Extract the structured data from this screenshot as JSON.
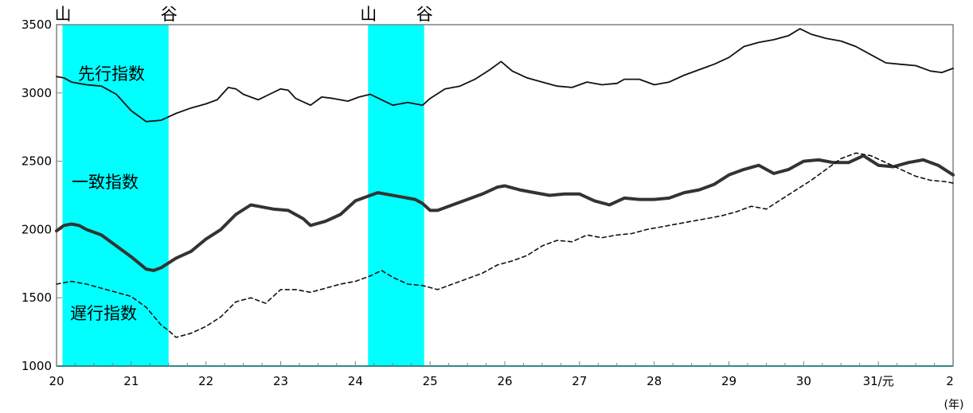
{
  "chart_data": {
    "type": "line",
    "title": "",
    "xlabel": "",
    "ylabel": "",
    "x_unit": "(年)",
    "ylim": [
      1000,
      3500
    ],
    "yticks": [
      "1000",
      "1500",
      "2000",
      "2500",
      "3000",
      "3500"
    ],
    "xticks": [
      "20",
      "21",
      "22",
      "23",
      "24",
      "25",
      "26",
      "27",
      "28",
      "29",
      "30",
      "31/元",
      "2"
    ],
    "xlim": [
      20,
      32
    ],
    "grid": false,
    "colors": {
      "shade": "#00FFFF",
      "leading": "#111111",
      "coincident": "#333333",
      "lagging": "#111111"
    },
    "recessions": [
      {
        "start": 20.08,
        "end": 21.5,
        "peak_label": "山",
        "trough_label": "谷"
      },
      {
        "start": 24.17,
        "end": 24.92,
        "peak_label": "山",
        "trough_label": "谷"
      }
    ],
    "series": [
      {
        "name": "先行指数",
        "style": "thin",
        "x": [
          20.0,
          20.1,
          20.2,
          20.4,
          20.6,
          20.8,
          21.0,
          21.2,
          21.4,
          21.6,
          21.8,
          22.0,
          22.15,
          22.3,
          22.4,
          22.5,
          22.7,
          22.85,
          23.0,
          23.1,
          23.2,
          23.4,
          23.55,
          23.7,
          23.9,
          24.05,
          24.2,
          24.35,
          24.5,
          24.7,
          24.9,
          25.0,
          25.2,
          25.4,
          25.6,
          25.8,
          25.95,
          26.1,
          26.3,
          26.5,
          26.7,
          26.9,
          27.1,
          27.3,
          27.5,
          27.6,
          27.8,
          28.0,
          28.2,
          28.4,
          28.6,
          28.8,
          29.0,
          29.2,
          29.4,
          29.6,
          29.8,
          29.95,
          30.1,
          30.3,
          30.5,
          30.7,
          30.9,
          31.1,
          31.3,
          31.5,
          31.7,
          31.85,
          32.0
        ],
        "values": [
          3120,
          3110,
          3080,
          3060,
          3050,
          2990,
          2870,
          2790,
          2800,
          2850,
          2890,
          2920,
          2950,
          3040,
          3030,
          2990,
          2950,
          2990,
          3030,
          3020,
          2960,
          2910,
          2970,
          2960,
          2940,
          2970,
          2990,
          2950,
          2910,
          2930,
          2910,
          2960,
          3030,
          3050,
          3100,
          3170,
          3230,
          3160,
          3110,
          3080,
          3050,
          3040,
          3080,
          3060,
          3070,
          3100,
          3100,
          3060,
          3080,
          3130,
          3170,
          3210,
          3260,
          3340,
          3370,
          3390,
          3420,
          3470,
          3430,
          3400,
          3380,
          3340,
          3280,
          3220,
          3210,
          3200,
          3160,
          3150,
          3180
        ]
      },
      {
        "name": "一致指数",
        "style": "bold",
        "x": [
          20.0,
          20.1,
          20.2,
          20.3,
          20.4,
          20.6,
          20.8,
          21.0,
          21.2,
          21.3,
          21.4,
          21.6,
          21.8,
          22.0,
          22.2,
          22.4,
          22.6,
          22.7,
          22.9,
          23.1,
          23.3,
          23.4,
          23.6,
          23.8,
          24.0,
          24.2,
          24.3,
          24.4,
          24.6,
          24.8,
          24.9,
          25.0,
          25.1,
          25.3,
          25.5,
          25.7,
          25.9,
          26.0,
          26.2,
          26.4,
          26.6,
          26.8,
          27.0,
          27.2,
          27.4,
          27.6,
          27.8,
          28.0,
          28.2,
          28.4,
          28.6,
          28.8,
          29.0,
          29.2,
          29.4,
          29.6,
          29.8,
          30.0,
          30.2,
          30.4,
          30.6,
          30.8,
          31.0,
          31.2,
          31.4,
          31.6,
          31.8,
          32.0
        ],
        "values": [
          1990,
          2030,
          2040,
          2030,
          2000,
          1960,
          1880,
          1800,
          1710,
          1700,
          1720,
          1790,
          1840,
          1930,
          2000,
          2110,
          2180,
          2170,
          2150,
          2140,
          2080,
          2030,
          2060,
          2110,
          2210,
          2250,
          2270,
          2260,
          2240,
          2220,
          2190,
          2140,
          2140,
          2180,
          2220,
          2260,
          2310,
          2320,
          2290,
          2270,
          2250,
          2260,
          2260,
          2210,
          2180,
          2230,
          2220,
          2220,
          2230,
          2270,
          2290,
          2330,
          2400,
          2440,
          2470,
          2410,
          2440,
          2500,
          2510,
          2490,
          2490,
          2540,
          2470,
          2460,
          2490,
          2510,
          2470,
          2400
        ]
      },
      {
        "name": "遅行指数",
        "style": "dashed",
        "x": [
          20.0,
          20.2,
          20.4,
          20.6,
          20.8,
          21.0,
          21.2,
          21.4,
          21.5,
          21.6,
          21.8,
          22.0,
          22.2,
          22.4,
          22.6,
          22.8,
          23.0,
          23.2,
          23.4,
          23.6,
          23.8,
          24.0,
          24.2,
          24.35,
          24.5,
          24.7,
          24.9,
          25.1,
          25.3,
          25.5,
          25.7,
          25.9,
          26.1,
          26.3,
          26.5,
          26.7,
          26.9,
          27.1,
          27.3,
          27.5,
          27.7,
          27.9,
          28.1,
          28.3,
          28.5,
          28.7,
          28.9,
          29.1,
          29.3,
          29.5,
          29.7,
          29.9,
          30.1,
          30.3,
          30.5,
          30.7,
          30.9,
          31.1,
          31.3,
          31.5,
          31.7,
          31.9,
          32.0
        ],
        "values": [
          1600,
          1620,
          1600,
          1570,
          1540,
          1510,
          1430,
          1300,
          1260,
          1210,
          1240,
          1290,
          1360,
          1470,
          1500,
          1460,
          1560,
          1560,
          1540,
          1570,
          1600,
          1620,
          1660,
          1700,
          1650,
          1600,
          1590,
          1560,
          1600,
          1640,
          1680,
          1740,
          1770,
          1810,
          1880,
          1920,
          1910,
          1960,
          1940,
          1960,
          1970,
          2000,
          2020,
          2040,
          2060,
          2080,
          2100,
          2130,
          2170,
          2150,
          2220,
          2290,
          2360,
          2440,
          2520,
          2560,
          2540,
          2490,
          2440,
          2390,
          2360,
          2350,
          2340
        ]
      }
    ],
    "annotations": [
      {
        "text": "先行指数",
        "series": "先行指数"
      },
      {
        "text": "一致指数",
        "series": "一致指数"
      },
      {
        "text": "遅行指数",
        "series": "遅行指数"
      }
    ]
  }
}
